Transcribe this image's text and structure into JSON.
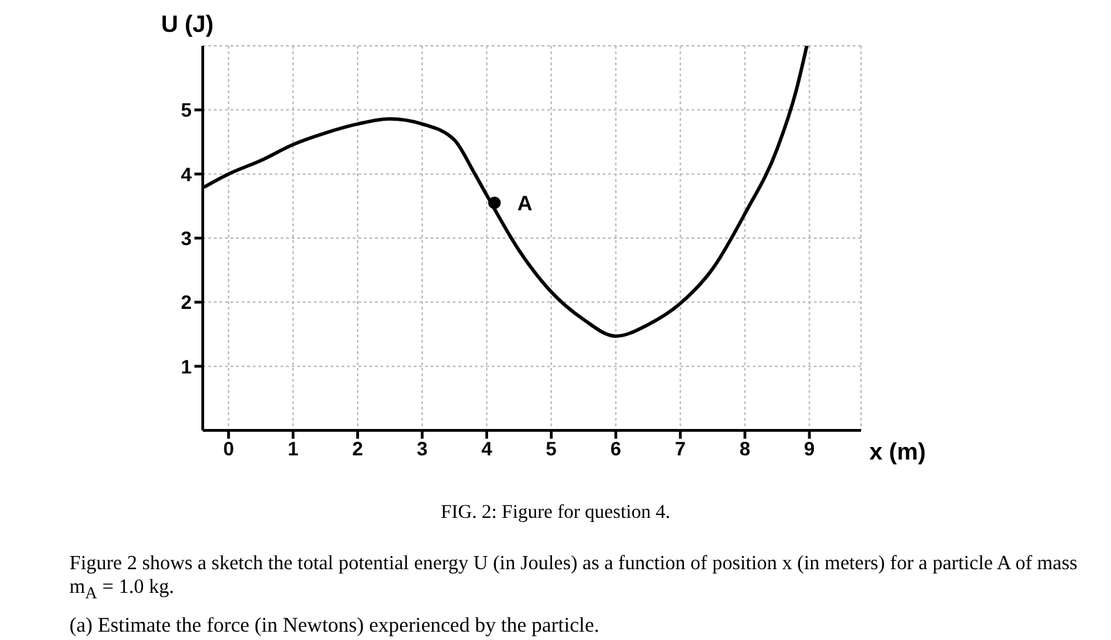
{
  "chart_data": {
    "type": "line",
    "xlabel": "x (m)",
    "ylabel": "U (J)",
    "x": [
      -0.37,
      0,
      0.5,
      1,
      1.5,
      2,
      2.5,
      3,
      3.5,
      3.8,
      4.0,
      4.5,
      5,
      5.5,
      6,
      6.5,
      7,
      7.5,
      8,
      8.5,
      8.8,
      8.96
    ],
    "series": [
      {
        "marker": "none",
        "color": "#000000",
        "values": [
          3.8,
          4.0,
          4.21,
          4.46,
          4.64,
          4.78,
          4.86,
          4.78,
          4.53,
          4.03,
          3.67,
          2.81,
          2.16,
          1.73,
          1.47,
          1.65,
          1.98,
          2.52,
          3.38,
          4.39,
          5.32,
          6.0
        ]
      },
      {
        "type": "scatter",
        "marker": "circle",
        "name": "A",
        "color": "#000000",
        "x": [
          4.12
        ],
        "values": [
          3.55
        ]
      }
    ],
    "xlim": [
      -0.4,
      9.8
    ],
    "xticks": [
      0,
      1,
      2,
      3,
      4,
      5,
      6,
      7,
      8,
      9
    ],
    "ylim": [
      0,
      6
    ],
    "yticks": [
      1,
      2,
      3,
      4,
      5
    ],
    "grid": true,
    "line_style": "solid",
    "annotations": [
      "FIG. 2: Figure for question 4.",
      "Figure 2 shows a sketch the total potential energy U (in Joules) as a function of position x (in meters) for a particle A of mass m$_{A}$ = 1.0 kg.",
      "(a) Estimate the force (in Newtons) experienced by the particle."
    ]
  }
}
